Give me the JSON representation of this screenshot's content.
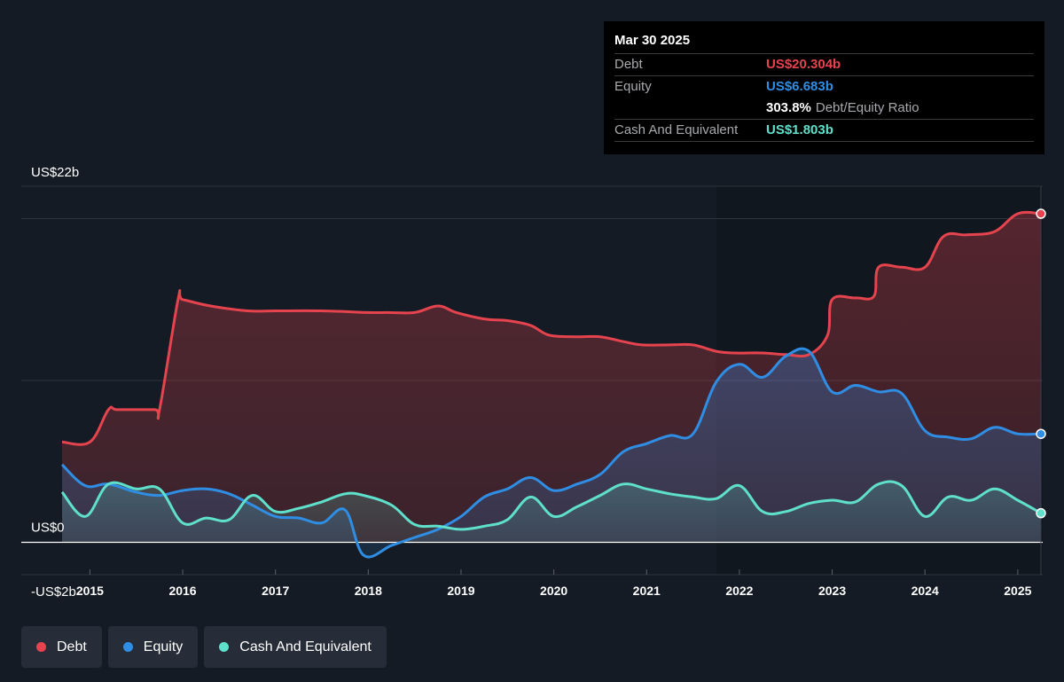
{
  "tooltip": {
    "date": "Mar 30 2025",
    "debt_label": "Debt",
    "debt_value": "US$20.304b",
    "equity_label": "Equity",
    "equity_value": "US$6.683b",
    "ratio_value": "303.8%",
    "ratio_label": "Debt/Equity Ratio",
    "cash_label": "Cash And Equivalent",
    "cash_value": "US$1.803b"
  },
  "legend": [
    {
      "label": "Debt",
      "color": "#e5444e"
    },
    {
      "label": "Equity",
      "color": "#2f8ee4"
    },
    {
      "label": "Cash And Equivalent",
      "color": "#5fe0cb"
    }
  ],
  "chart_data": {
    "type": "area",
    "y_tick_labels": [
      "US$22b",
      "US$0",
      "-US$2b"
    ],
    "ylim": [
      -2,
      22
    ],
    "xlim": [
      2014.7,
      2025.25
    ],
    "x_tick_labels": [
      "2015",
      "2016",
      "2017",
      "2018",
      "2019",
      "2020",
      "2021",
      "2022",
      "2023",
      "2024",
      "2025"
    ],
    "grid": true,
    "legend_position": "bottom-left",
    "series": [
      {
        "name": "Debt",
        "color": "#e5444e",
        "x": [
          2014.7,
          2015.0,
          2015.2,
          2015.3,
          2015.7,
          2015.75,
          2015.95,
          2016.0,
          2016.3,
          2016.7,
          2017.0,
          2017.5,
          2018.0,
          2018.2,
          2018.5,
          2018.75,
          2018.95,
          2019.25,
          2019.5,
          2019.75,
          2019.95,
          2020.25,
          2020.5,
          2020.75,
          2020.95,
          2021.25,
          2021.5,
          2021.75,
          2021.95,
          2022.25,
          2022.5,
          2022.75,
          2022.95,
          2023.0,
          2023.25,
          2023.45,
          2023.5,
          2023.75,
          2024.0,
          2024.2,
          2024.45,
          2024.75,
          2025.0,
          2025.25
        ],
        "values": [
          6.2,
          6.2,
          8.2,
          8.2,
          8.2,
          8.2,
          15.0,
          15.0,
          14.6,
          14.3,
          14.3,
          14.3,
          14.2,
          14.2,
          14.2,
          14.6,
          14.2,
          13.8,
          13.7,
          13.4,
          12.8,
          12.7,
          12.7,
          12.4,
          12.2,
          12.2,
          12.2,
          11.8,
          11.7,
          11.7,
          11.6,
          11.6,
          12.8,
          15.0,
          15.1,
          15.2,
          17.0,
          17.0,
          17.0,
          18.9,
          19.0,
          19.2,
          20.3,
          20.3
        ]
      },
      {
        "name": "Equity",
        "color": "#2f8ee4",
        "x": [
          2014.7,
          2014.95,
          2015.2,
          2015.5,
          2015.75,
          2016.0,
          2016.25,
          2016.5,
          2016.75,
          2017.0,
          2017.25,
          2017.5,
          2017.75,
          2017.95,
          2018.25,
          2018.5,
          2018.75,
          2019.0,
          2019.25,
          2019.5,
          2019.75,
          2020.0,
          2020.25,
          2020.5,
          2020.75,
          2021.0,
          2021.25,
          2021.5,
          2021.75,
          2022.0,
          2022.25,
          2022.5,
          2022.75,
          2023.0,
          2023.25,
          2023.5,
          2023.75,
          2024.0,
          2024.25,
          2024.5,
          2024.75,
          2025.0,
          2025.25
        ],
        "values": [
          4.8,
          3.5,
          3.6,
          3.1,
          2.9,
          3.2,
          3.3,
          3.0,
          2.3,
          1.6,
          1.5,
          1.2,
          2.0,
          -0.8,
          -0.2,
          0.3,
          0.8,
          1.6,
          2.8,
          3.3,
          4.0,
          3.2,
          3.6,
          4.2,
          5.6,
          6.1,
          6.6,
          6.7,
          9.9,
          11.0,
          10.2,
          11.5,
          11.8,
          9.3,
          9.7,
          9.3,
          9.2,
          6.9,
          6.5,
          6.4,
          7.1,
          6.7,
          6.7
        ]
      },
      {
        "name": "Cash And Equivalent",
        "color": "#5fe0cb",
        "x": [
          2014.7,
          2014.95,
          2015.2,
          2015.5,
          2015.75,
          2016.0,
          2016.25,
          2016.5,
          2016.75,
          2017.0,
          2017.25,
          2017.5,
          2017.75,
          2017.95,
          2018.25,
          2018.5,
          2018.75,
          2019.0,
          2019.25,
          2019.5,
          2019.75,
          2020.0,
          2020.25,
          2020.5,
          2020.75,
          2021.0,
          2021.25,
          2021.5,
          2021.75,
          2022.0,
          2022.25,
          2022.5,
          2022.75,
          2023.0,
          2023.25,
          2023.5,
          2023.75,
          2024.0,
          2024.25,
          2024.5,
          2024.75,
          2025.0,
          2025.25
        ],
        "values": [
          3.1,
          1.6,
          3.6,
          3.3,
          3.3,
          1.2,
          1.5,
          1.4,
          2.9,
          1.9,
          2.1,
          2.5,
          3.0,
          2.9,
          2.3,
          1.1,
          1.0,
          0.8,
          1.0,
          1.4,
          2.8,
          1.6,
          2.2,
          2.9,
          3.6,
          3.3,
          3.0,
          2.8,
          2.7,
          3.5,
          1.9,
          1.9,
          2.4,
          2.6,
          2.5,
          3.6,
          3.5,
          1.6,
          2.8,
          2.6,
          3.3,
          2.6,
          1.8
        ]
      }
    ]
  }
}
